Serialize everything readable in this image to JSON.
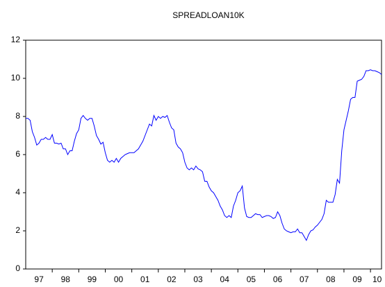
{
  "chart_data": {
    "type": "line",
    "title": "SPREADLOAN10K",
    "categories": [
      null,
      null,
      null,
      null,
      null,
      null,
      "97",
      null,
      null,
      null,
      null,
      null,
      null,
      null,
      null,
      null,
      null,
      null,
      "98",
      null,
      null,
      null,
      null,
      null,
      null,
      null,
      null,
      null,
      null,
      null,
      "99",
      null,
      null,
      null,
      null,
      null,
      null,
      null,
      null,
      null,
      null,
      null,
      "00",
      null,
      null,
      null,
      null,
      null,
      null,
      null,
      null,
      null,
      null,
      null,
      "01",
      null,
      null,
      null,
      null,
      null,
      null,
      null,
      null,
      null,
      null,
      null,
      "02",
      null,
      null,
      null,
      null,
      null,
      null,
      null,
      null,
      null,
      null,
      null,
      "03",
      null,
      null,
      null,
      null,
      null,
      null,
      null,
      null,
      null,
      null,
      null,
      "04",
      null,
      null,
      null,
      null,
      null,
      null,
      null,
      null,
      null,
      null,
      null,
      "05",
      null,
      null,
      null,
      null,
      null,
      null,
      null,
      null,
      null,
      null,
      null,
      "06",
      null,
      null,
      null,
      null,
      null,
      null,
      null,
      null,
      null,
      null,
      null,
      "07",
      null,
      null,
      null,
      null,
      null,
      null,
      null,
      null,
      null,
      null,
      null,
      "08",
      null,
      null,
      null,
      null,
      null,
      null,
      null,
      null,
      null,
      null,
      null,
      "09",
      null,
      null,
      null,
      null,
      null,
      null,
      null,
      null,
      "10",
      null,
      null
    ],
    "values": [
      7.9,
      7.9,
      7.8,
      7.2,
      6.9,
      6.5,
      6.6,
      6.8,
      6.8,
      6.9,
      6.8,
      6.8,
      7.05,
      6.6,
      6.6,
      6.55,
      6.6,
      6.3,
      6.3,
      6.0,
      6.2,
      6.2,
      6.7,
      7.1,
      7.3,
      7.9,
      8.05,
      7.9,
      7.8,
      7.9,
      7.9,
      7.5,
      7.0,
      6.8,
      6.55,
      6.65,
      6.1,
      5.7,
      5.6,
      5.7,
      5.6,
      5.8,
      5.6,
      5.8,
      5.9,
      6.0,
      6.05,
      6.1,
      6.1,
      6.1,
      6.2,
      6.3,
      6.5,
      6.7,
      7.0,
      7.3,
      7.6,
      7.5,
      8.05,
      7.8,
      8.0,
      7.9,
      8.0,
      7.95,
      8.05,
      7.7,
      7.4,
      7.3,
      6.6,
      6.4,
      6.3,
      6.1,
      5.6,
      5.3,
      5.2,
      5.3,
      5.2,
      5.4,
      5.25,
      5.2,
      5.1,
      4.6,
      4.6,
      4.3,
      4.1,
      4.0,
      3.8,
      3.6,
      3.3,
      3.1,
      2.8,
      2.7,
      2.8,
      2.7,
      3.3,
      3.6,
      4.0,
      4.1,
      4.35,
      3.2,
      2.75,
      2.7,
      2.7,
      2.8,
      2.9,
      2.85,
      2.85,
      2.7,
      2.75,
      2.8,
      2.8,
      2.75,
      2.65,
      2.7,
      3.0,
      2.8,
      2.4,
      2.1,
      2.0,
      1.95,
      1.9,
      1.95,
      1.95,
      2.1,
      1.9,
      1.9,
      1.7,
      1.5,
      1.8,
      2.0,
      2.05,
      2.2,
      2.3,
      2.45,
      2.6,
      2.9,
      3.6,
      3.5,
      3.5,
      3.5,
      3.9,
      4.7,
      4.5,
      6.2,
      7.3,
      7.8,
      8.3,
      8.9,
      9.0,
      9.0,
      9.85,
      9.9,
      9.95,
      10.1,
      10.4,
      10.4,
      10.45,
      10.4,
      10.4,
      10.35,
      10.3,
      10.2
    ],
    "color": "#0000ff",
    "ylim": [
      0,
      12
    ],
    "yticks": [
      0,
      2,
      4,
      6,
      8,
      10,
      12
    ],
    "grid": false
  }
}
